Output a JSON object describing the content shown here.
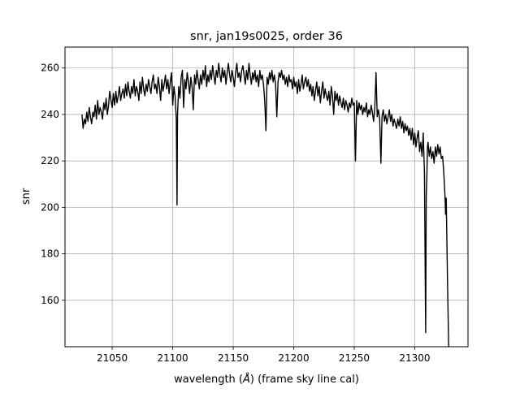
{
  "chart_data": {
    "type": "line",
    "title": "snr, jan19s0025, order 36",
    "xlabel_prefix": "wavelength (",
    "xlabel_unit": "Å",
    "xlabel_suffix": ") (frame sky line cal)",
    "ylabel": "snr",
    "xlim": [
      21011,
      21344
    ],
    "ylim": [
      140,
      269
    ],
    "xticks": [
      21050,
      21100,
      21150,
      21200,
      21250,
      21300
    ],
    "yticks": [
      160,
      180,
      200,
      220,
      240,
      260
    ],
    "grid": true,
    "line_color": "#000000",
    "grid_color": "#b0b0b0",
    "series": [
      {
        "x": [
          21025,
          21026,
          21027,
          21028,
          21029,
          21030,
          21031,
          21032,
          21033,
          21034,
          21035,
          21036,
          21037,
          21038,
          21039,
          21040,
          21041,
          21042,
          21043,
          21044,
          21045,
          21046,
          21047,
          21048,
          21049,
          21050,
          21051,
          21052,
          21053,
          21054,
          21055,
          21056,
          21057,
          21058,
          21059,
          21060,
          21061,
          21062,
          21063,
          21064,
          21065,
          21066,
          21067,
          21068,
          21069,
          21070,
          21071,
          21072,
          21073,
          21074,
          21075,
          21076,
          21077,
          21078,
          21079,
          21080,
          21081,
          21082,
          21083,
          21084,
          21085,
          21086,
          21087,
          21088,
          21089,
          21090,
          21091,
          21092,
          21093,
          21094,
          21095,
          21096,
          21097,
          21098,
          21099,
          21100,
          21101,
          21102,
          21103,
          21103.6,
          21104,
          21105,
          21106,
          21107,
          21108,
          21109,
          21110,
          21111,
          21112,
          21113,
          21114,
          21115,
          21116,
          21117,
          21118,
          21119,
          21120,
          21121,
          21122,
          21123,
          21124,
          21125,
          21126,
          21127,
          21128,
          21129,
          21130,
          21131,
          21132,
          21133,
          21134,
          21135,
          21136,
          21137,
          21138,
          21139,
          21140,
          21141,
          21142,
          21143,
          21144,
          21145,
          21146,
          21147,
          21148,
          21149,
          21150,
          21151,
          21152,
          21153,
          21154,
          21155,
          21156,
          21157,
          21158,
          21159,
          21160,
          21161,
          21162,
          21163,
          21164,
          21165,
          21166,
          21167,
          21168,
          21169,
          21170,
          21171,
          21172,
          21173,
          21174,
          21175,
          21176,
          21177,
          21178,
          21179,
          21180,
          21181,
          21182,
          21183,
          21184,
          21185,
          21186,
          21187,
          21188,
          21189,
          21190,
          21191,
          21192,
          21193,
          21194,
          21195,
          21196,
          21197,
          21198,
          21199,
          21200,
          21201,
          21202,
          21203,
          21204,
          21205,
          21206,
          21207,
          21208,
          21209,
          21210,
          21211,
          21212,
          21213,
          21214,
          21215,
          21216,
          21217,
          21218,
          21219,
          21220,
          21221,
          21222,
          21223,
          21224,
          21225,
          21226,
          21227,
          21228,
          21229,
          21230,
          21231,
          21232,
          21233,
          21234,
          21235,
          21236,
          21237,
          21238,
          21239,
          21240,
          21241,
          21242,
          21243,
          21244,
          21245,
          21246,
          21247,
          21248,
          21249,
          21250,
          21251,
          21252,
          21253,
          21254,
          21255,
          21256,
          21257,
          21258,
          21259,
          21260,
          21261,
          21262,
          21263,
          21264,
          21265,
          21266,
          21267,
          21268,
          21269,
          21270,
          21271,
          21272,
          21273,
          21274,
          21275,
          21276,
          21277,
          21278,
          21279,
          21280,
          21281,
          21282,
          21283,
          21284,
          21285,
          21286,
          21287,
          21288,
          21289,
          21290,
          21291,
          21292,
          21293,
          21294,
          21295,
          21296,
          21297,
          21298,
          21299,
          21300,
          21301,
          21302,
          21303,
          21304,
          21305,
          21306,
          21307,
          21308,
          21309,
          21309.5,
          21310,
          21310.5,
          21311,
          21312,
          21313,
          21314,
          21315,
          21316,
          21317,
          21318,
          21319,
          21320,
          21321,
          21322,
          21323,
          21324,
          21325,
          21325.5,
          21326,
          21327,
          21328
        ],
        "values": [
          240,
          234,
          238,
          236,
          241,
          237,
          243,
          239,
          236,
          241,
          239,
          244,
          238,
          246,
          240,
          243,
          241,
          238,
          245,
          242,
          247,
          240,
          244,
          250,
          246,
          243,
          249,
          244,
          250,
          245,
          248,
          252,
          246,
          249,
          251,
          247,
          253,
          248,
          254,
          250,
          247,
          252,
          249,
          255,
          248,
          252,
          250,
          246,
          254,
          249,
          256,
          251,
          248,
          253,
          250,
          255,
          252,
          249,
          254,
          257,
          251,
          253,
          249,
          256,
          252,
          246,
          255,
          250,
          253,
          257,
          251,
          255,
          249,
          254,
          258,
          244,
          252,
          248,
          238,
          201,
          240,
          252,
          247,
          256,
          259,
          243,
          255,
          251,
          258,
          254,
          249,
          256,
          252,
          242,
          257,
          253,
          259,
          255,
          251,
          257,
          253,
          259,
          255,
          261,
          252,
          257,
          254,
          259,
          255,
          261,
          257,
          253,
          259,
          256,
          262,
          257,
          254,
          260,
          256,
          259,
          253,
          258,
          262,
          257,
          254,
          259,
          256,
          252,
          258,
          262,
          256,
          258,
          254,
          259,
          261,
          257,
          253,
          259,
          255,
          262,
          257,
          253,
          258,
          255,
          259,
          254,
          257,
          252,
          259,
          255,
          257,
          253,
          246,
          233,
          256,
          253,
          258,
          255,
          259,
          254,
          257,
          253,
          239,
          254,
          258,
          256,
          259,
          255,
          257,
          253,
          256,
          252,
          257,
          254,
          255,
          251,
          256,
          252,
          254,
          249,
          255,
          250,
          253,
          257,
          251,
          254,
          256,
          252,
          255,
          250,
          253,
          248,
          252,
          246,
          250,
          254,
          248,
          252,
          245,
          250,
          254,
          247,
          251,
          248,
          246,
          250,
          244,
          252,
          248,
          240,
          250,
          246,
          249,
          244,
          248,
          245,
          243,
          247,
          242,
          246,
          244,
          241,
          245,
          243,
          247,
          244,
          245,
          220,
          246,
          240,
          245,
          242,
          244,
          240,
          243,
          241,
          245,
          239,
          242,
          240,
          244,
          241,
          237,
          243,
          258,
          239,
          242,
          238,
          219,
          239,
          242,
          237,
          240,
          236,
          239,
          242,
          237,
          240,
          235,
          238,
          236,
          234,
          238,
          235,
          239,
          234,
          237,
          232,
          236,
          233,
          235,
          231,
          234,
          229,
          234,
          227,
          232,
          226,
          230,
          233,
          224,
          228,
          222,
          232,
          215,
          146,
          205,
          214,
          226,
          228,
          222,
          226,
          221,
          224,
          219,
          226,
          222,
          227,
          223,
          226,
          221,
          222,
          215,
          205,
          197,
          204,
          170,
          140
        ]
      }
    ]
  }
}
